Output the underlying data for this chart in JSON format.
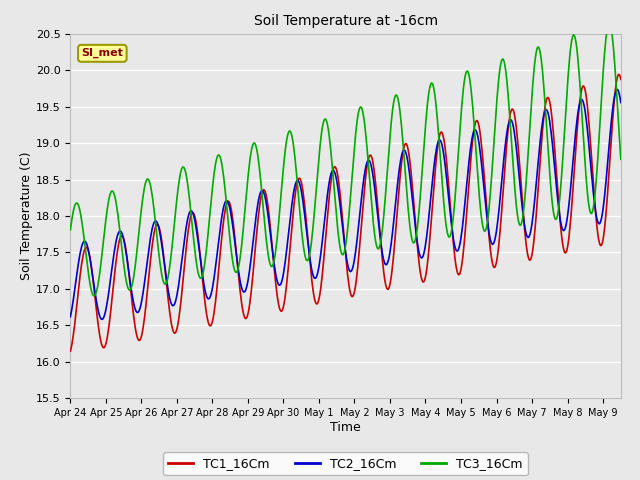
{
  "title": "Soil Temperature at -16cm",
  "xlabel": "Time",
  "ylabel": "Soil Temperature (C)",
  "ylim": [
    15.5,
    20.5
  ],
  "xlim": [
    0,
    15.5
  ],
  "n_days": 15.5,
  "background_color": "#e8e8e8",
  "plot_bg_color": "#e8e8e8",
  "grid_color": "#ffffff",
  "annotation_text": "SI_met",
  "annotation_bg": "#ffff99",
  "annotation_border": "#999900",
  "TC1_color": "#cc0000",
  "TC2_color": "#0000cc",
  "TC3_color": "#00aa00",
  "lw": 1.2,
  "xtick_labels": [
    "Apr 24",
    "Apr 25",
    "Apr 26",
    "Apr 27",
    "Apr 28",
    "Apr 29",
    "Apr 30",
    "May 1",
    "May 2",
    "May 3",
    "May 4",
    "May 5",
    "May 6",
    "May 7",
    "May 8",
    "May 9"
  ],
  "yticks": [
    15.5,
    16.0,
    16.5,
    17.0,
    17.5,
    18.0,
    18.5,
    19.0,
    19.5,
    20.0,
    20.5
  ]
}
